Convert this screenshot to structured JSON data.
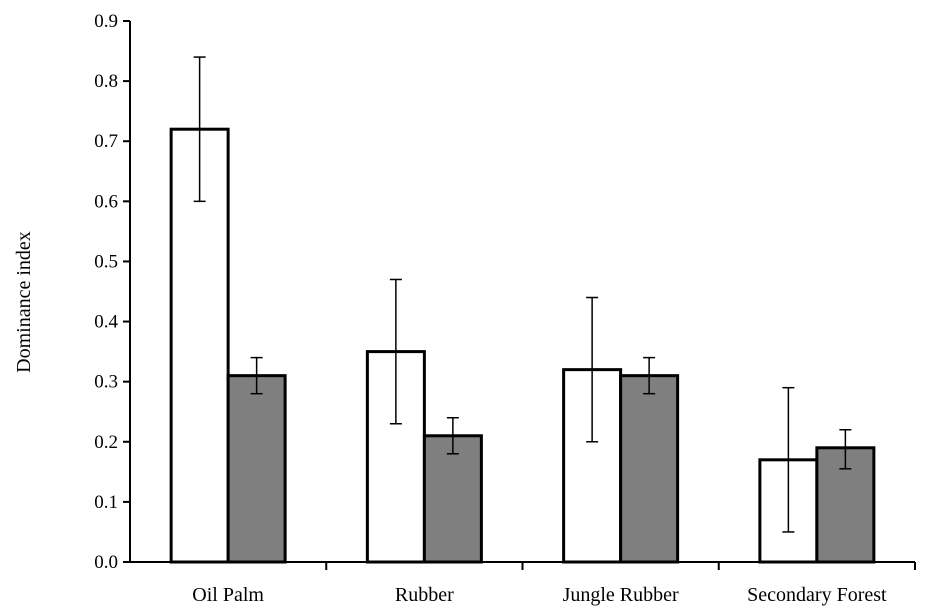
{
  "chart_data": {
    "type": "bar",
    "title": "",
    "xlabel": "",
    "ylabel": "Dominance index",
    "categories": [
      "Oil Palm",
      "Rubber",
      "Jungle Rubber",
      "Secondary Forest"
    ],
    "ylim": [
      0,
      0.9
    ],
    "yticks": [
      "0.0",
      "0.1",
      "0.2",
      "0.3",
      "0.4",
      "0.5",
      "0.6",
      "0.7",
      "0.8",
      "0.9"
    ],
    "grid": false,
    "legend": "none",
    "series": [
      {
        "values": [
          0.72,
          0.35,
          0.32,
          0.17
        ],
        "error_low": [
          0.6,
          0.23,
          0.2,
          0.05
        ],
        "error_high": [
          0.84,
          0.47,
          0.44,
          0.29
        ],
        "fill": "#ffffff"
      },
      {
        "values": [
          0.31,
          0.21,
          0.31,
          0.19
        ],
        "error_low": [
          0.28,
          0.18,
          0.28,
          0.155
        ],
        "error_high": [
          0.34,
          0.24,
          0.34,
          0.22
        ],
        "fill": "#7f7f7f"
      }
    ]
  }
}
